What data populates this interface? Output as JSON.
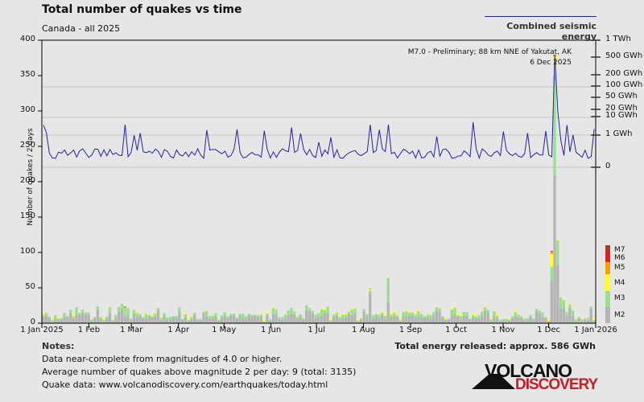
{
  "header": {
    "title": "Total number of quakes vs time",
    "subtitle": "Canada - all 2025"
  },
  "legend": {
    "energy_label": "Combined seismic energy",
    "energy_color": "#2222aa",
    "magnitudes": [
      {
        "label": "M7",
        "color": "#b03a1a"
      },
      {
        "label": "M6",
        "color": "#e02020"
      },
      {
        "label": "M5",
        "color": "#f5a000"
      },
      {
        "label": "M4",
        "color": "#ffff20"
      },
      {
        "label": "M3",
        "color": "#98e090"
      },
      {
        "label": "M2",
        "color": "#b4b4b4"
      }
    ]
  },
  "axes": {
    "ylabel": "Number of quakes / 2 days",
    "left_ticks": [
      "0",
      "50",
      "100",
      "150",
      "200",
      "250",
      "300",
      "350",
      "400"
    ],
    "right_ticks": [
      "1 TWh",
      "500 GWh",
      "200 GWh",
      "100 GWh",
      "50 GWh",
      "20 GWh",
      "10 GWh",
      "1 GWh",
      "0"
    ],
    "x_ticks": [
      "1 Jan 2025",
      "1 Feb",
      "1 Mar",
      "1 Apr",
      "1 May",
      "1 Jun",
      "1 Jul",
      "1 Aug",
      "1 Sep",
      "1 Oct",
      "1 Nov",
      "1 Dec",
      "1 Jan 2026"
    ]
  },
  "annotation": {
    "line1": "M7.0 - Preliminary; 88 km NNE of Yakutat, AK",
    "line2": "6 Dec 2025"
  },
  "notes": {
    "title": "Notes:",
    "line1": "Data near-complete from magnitudes of 4.0 or higher.",
    "line2": "Average number of quakes above magnitude 2 per day: 9 (total: 3135)",
    "line3": "Quake data: www.volcanodiscovery.com/earthquakes/today.html"
  },
  "total_energy": "Total energy released: approx. 586 GWh",
  "logo": {
    "top": "VOLCANO",
    "bottom": "DISCOVERY"
  },
  "chart_data": {
    "type": "bar",
    "title": "Total number of quakes vs time",
    "subtitle": "Canada - all 2025",
    "xlabel": "",
    "ylabel": "Number of quakes / 2 days",
    "ylim": [
      0,
      400
    ],
    "x_range": [
      "1 Jan 2025",
      "1 Jan 2026"
    ],
    "bin": "2 days",
    "stacked": true,
    "series_order": [
      "M2",
      "M3",
      "M4",
      "M5",
      "M6",
      "M7"
    ],
    "highlights": [
      {
        "date": "6 Dec 2025",
        "total": 380,
        "M2": 210,
        "M3": 140,
        "M4": 27,
        "M5": 3,
        "event": "M7.0 - Preliminary; 88 km NNE of Yakutat, AK"
      },
      {
        "date": "4 Dec 2025",
        "total": 102,
        "M2": 60,
        "M3": 20,
        "M4": 18,
        "M5": 3,
        "M6": 1
      },
      {
        "date": "8 Dec 2025",
        "total": 119,
        "M2": 82,
        "M3": 35,
        "M4": 2
      },
      {
        "date": "6 Aug 2025",
        "total": 49,
        "M2": 43,
        "M3": 3,
        "M4": 2,
        "M5": 1
      },
      {
        "date": "18 Aug 2025",
        "total": 65,
        "M2": 30,
        "M3": 34,
        "M4": 1
      },
      {
        "date": "24 Feb 2025",
        "total": 24,
        "M2": 10,
        "M3": 12,
        "M5": 2
      }
    ],
    "typical_range": [
      5,
      30
    ],
    "secondary_axis": {
      "label": "Combined seismic energy",
      "scale": "log",
      "ticks": [
        "0",
        "1 GWh",
        "10 GWh",
        "20 GWh",
        "50 GWh",
        "100 GWh",
        "200 GWh",
        "500 GWh",
        "1 TWh"
      ],
      "peak": "approx. 500 GWh on 6 Dec 2025"
    },
    "grid": true,
    "legend_position": "right"
  }
}
